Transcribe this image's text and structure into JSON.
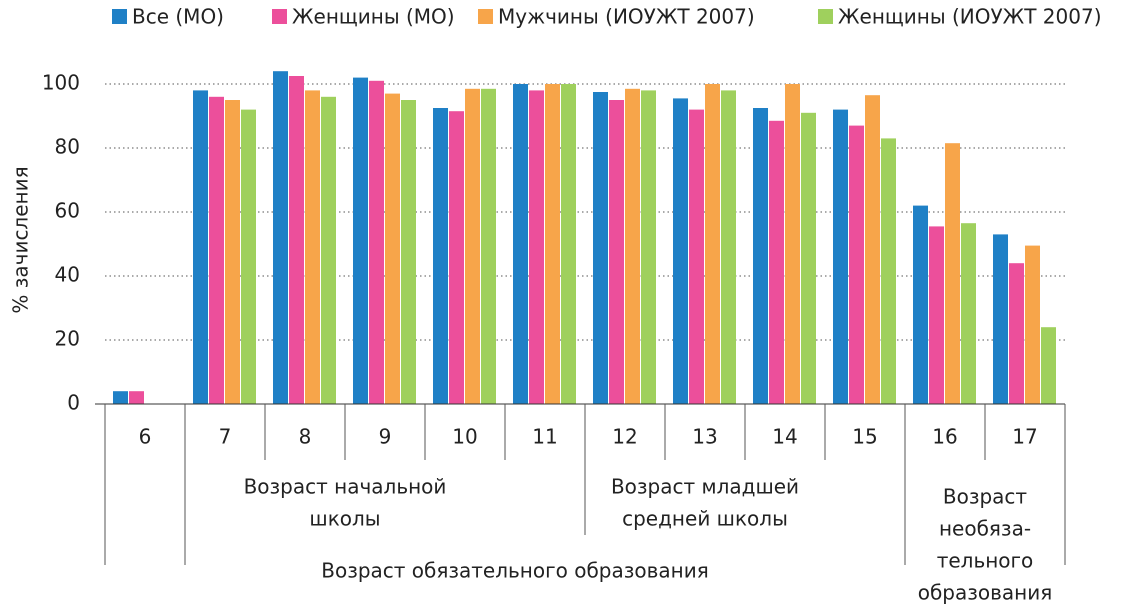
{
  "chart_data": {
    "type": "bar",
    "y_axis_label": "% зачисления",
    "categories": [
      "6",
      "7",
      "8",
      "9",
      "10",
      "11",
      "12",
      "13",
      "14",
      "15",
      "16",
      "17"
    ],
    "series": [
      {
        "name": "Все (МО)",
        "color": "#1f80c6",
        "values": [
          4,
          98,
          104,
          102,
          92.5,
          100,
          97.5,
          95.5,
          92.5,
          92,
          62,
          53
        ]
      },
      {
        "name": "Женщины (МО)",
        "color": "#ec4f9b",
        "values": [
          4,
          96,
          102.5,
          101,
          91.5,
          98,
          95,
          92,
          88.5,
          87,
          55.5,
          44
        ]
      },
      {
        "name": "Мужчины (ИОУЖТ 2007)",
        "color": "#f7a54a",
        "values": [
          null,
          95,
          98,
          97,
          98.5,
          100,
          98.5,
          100,
          100,
          96.5,
          81.5,
          49.5
        ]
      },
      {
        "name": "Женщины (ИОУЖТ 2007)",
        "color": "#9fd05d",
        "values": [
          null,
          92,
          96,
          95,
          98.5,
          100,
          98,
          98,
          91,
          83,
          56.5,
          24
        ]
      }
    ],
    "ylim": [
      0,
      105
    ],
    "yticks": [
      0,
      20,
      40,
      60,
      80,
      100
    ],
    "grid": true,
    "groups": [
      {
        "lines": [
          "Возраст начальной",
          "школы"
        ]
      },
      {
        "lines": [
          "Возраст младшей",
          "средней школы"
        ]
      },
      {
        "lines": [
          "Возраст",
          "необяза-",
          "тельного",
          "образования"
        ]
      },
      {
        "lines": [
          "Возраст обязательного образования"
        ]
      }
    ]
  }
}
